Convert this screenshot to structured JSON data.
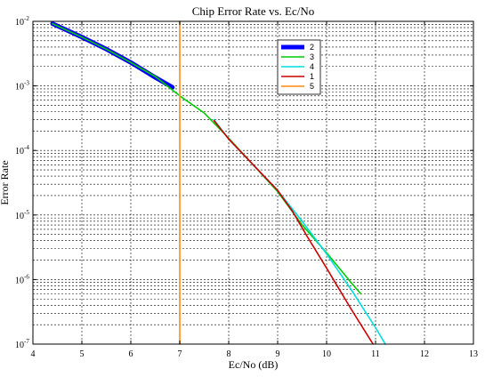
{
  "chart_data": {
    "type": "line",
    "title": "Chip Error Rate vs. Ec/No",
    "xlabel": "Ec/No (dB)",
    "ylabel": "Error Rate",
    "xlim": [
      4,
      13
    ],
    "ylim": [
      1e-07,
      0.01
    ],
    "yscale": "log",
    "grid": true,
    "legend_position": "top-right",
    "x_ticks": [
      "4",
      "5",
      "6",
      "7",
      "8",
      "9",
      "10",
      "11",
      "12",
      "13"
    ],
    "y_tick_base": "10",
    "y_ticks": [
      {
        "exp": "-2",
        "value": 0.01
      },
      {
        "exp": "-3",
        "value": 0.001
      },
      {
        "exp": "-4",
        "value": 0.0001
      },
      {
        "exp": "-5",
        "value": 1e-05
      },
      {
        "exp": "-6",
        "value": 1e-06
      },
      {
        "exp": "-7",
        "value": 1e-07
      }
    ],
    "series": [
      {
        "name": "2",
        "color": "#0000ff",
        "width": 5,
        "x": [
          4.4,
          5.0,
          5.5,
          6.0,
          6.5,
          6.85
        ],
        "y": [
          0.0092,
          0.0057,
          0.0037,
          0.0023,
          0.00135,
          0.00095
        ]
      },
      {
        "name": "3",
        "color": "#00cc00",
        "width": 1.6,
        "x": [
          4.4,
          5.0,
          5.5,
          6.0,
          6.5,
          7.0,
          7.5,
          8.0,
          8.5,
          9.0,
          9.5,
          10.0,
          10.5,
          10.7
        ],
        "y": [
          0.0092,
          0.0057,
          0.0037,
          0.0023,
          0.0014,
          0.0007,
          0.00038,
          0.000155,
          6e-05,
          2.3e-05,
          7e-06,
          2.6e-06,
          9e-07,
          6e-07
        ]
      },
      {
        "name": "4",
        "color": "#00dddd",
        "width": 1.6,
        "x": [
          7.7,
          8.0,
          8.5,
          9.0,
          9.5,
          10.0,
          10.5,
          11.0,
          11.2
        ],
        "y": [
          0.0003,
          0.00015,
          6e-05,
          2.4e-05,
          8e-06,
          2.5e-06,
          7e-07,
          1.8e-07,
          1e-07
        ]
      },
      {
        "name": "1",
        "color": "#cc0000",
        "width": 1.6,
        "x": [
          7.7,
          8.0,
          8.5,
          9.0,
          9.3,
          9.6,
          10.0,
          10.5,
          10.95
        ],
        "y": [
          0.00029,
          0.00015,
          6e-05,
          2.4e-05,
          1.15e-05,
          4.7e-06,
          1.5e-06,
          3.5e-07,
          1e-07
        ]
      },
      {
        "name": "5",
        "color": "#ff9933",
        "width": 1.8,
        "x": [
          7.0,
          7.0
        ],
        "y": [
          0.01,
          1e-07
        ]
      }
    ]
  }
}
